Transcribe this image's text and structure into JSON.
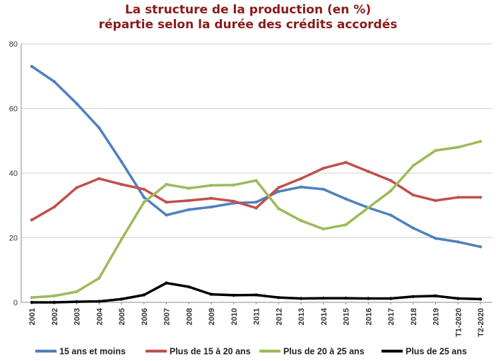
{
  "chart_data": {
    "type": "line",
    "title_line1": "La structure de la production (en %)",
    "title_line2": "répartie selon la durée des crédits accordés",
    "categories": [
      "2001",
      "2002",
      "2003",
      "2004",
      "2005",
      "2006",
      "2007",
      "2008",
      "2009",
      "2010",
      "2011",
      "2012",
      "2013",
      "2014",
      "2015",
      "2016",
      "2017",
      "2018",
      "2019",
      "T1-2020",
      "T2-2020"
    ],
    "ylim": [
      0,
      80
    ],
    "yticks": [
      "0",
      "20",
      "40",
      "60",
      "80"
    ],
    "grid": true,
    "legend_position": "bottom",
    "series": [
      {
        "name": "15 ans et moins",
        "color": "#4f81bd",
        "values": [
          73,
          68.3,
          61.5,
          54,
          43.5,
          32.5,
          27,
          28.7,
          29.5,
          30.7,
          31,
          34.3,
          35.7,
          35,
          32,
          29.3,
          27,
          23,
          19.8,
          18.7,
          17.2
        ]
      },
      {
        "name": "Plus de 15 à 20 ans",
        "color": "#c0504d",
        "values": [
          25.5,
          29.5,
          35.5,
          38.3,
          36.5,
          35,
          31,
          31.5,
          32.2,
          31.3,
          29.2,
          35.5,
          38.3,
          41.5,
          43.3,
          40.5,
          37.7,
          33.2,
          31.5,
          32.5,
          32.5
        ]
      },
      {
        "name": "Plus de 20 à 25 ans",
        "color": "#9bbb59",
        "values": [
          1.5,
          2,
          3.3,
          7.5,
          19.5,
          31,
          36.5,
          35.3,
          36.2,
          36.3,
          37.7,
          29,
          25.3,
          22.7,
          24,
          29.3,
          34.5,
          42.3,
          47,
          48,
          49.8
        ]
      },
      {
        "name": "Plus de 25 ans",
        "color": "#000000",
        "values": [
          0,
          0,
          0.2,
          0.3,
          1,
          2.3,
          6,
          4.8,
          2.5,
          2.2,
          2.3,
          1.5,
          1.2,
          1.3,
          1.3,
          1.2,
          1.2,
          1.8,
          2,
          1.2,
          1
        ]
      }
    ]
  }
}
